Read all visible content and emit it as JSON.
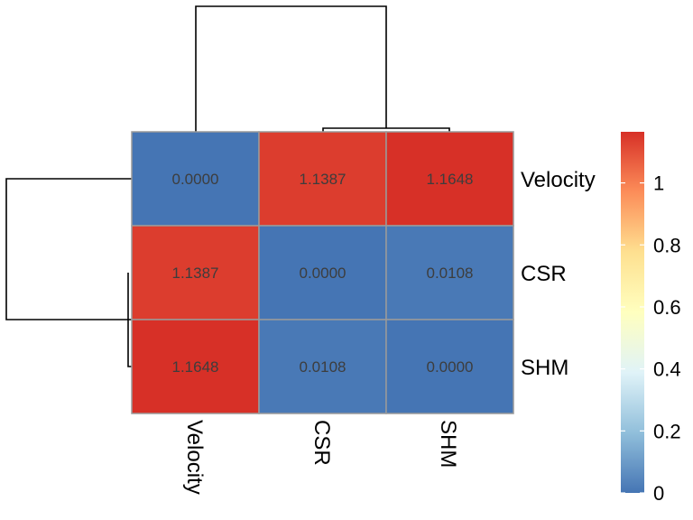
{
  "chart_data": {
    "type": "heatmap",
    "title": "",
    "rows": [
      "Velocity",
      "CSR",
      "SHM"
    ],
    "columns": [
      "Velocity",
      "CSR",
      "SHM"
    ],
    "values": [
      [
        0.0,
        1.1387,
        1.1648
      ],
      [
        1.1387,
        0.0,
        0.0108
      ],
      [
        1.1648,
        0.0108,
        0.0
      ]
    ],
    "cell_labels": [
      [
        "0.0000",
        "1.1387",
        "1.1648"
      ],
      [
        "1.1387",
        "0.0000",
        "0.0108"
      ],
      [
        "1.1648",
        "0.0108",
        "0.0000"
      ]
    ],
    "color_scale": {
      "min": 0,
      "max": 1.1648,
      "colors": [
        "#4575B4",
        "#91BFDB",
        "#E0F3F8",
        "#FFFFBF",
        "#FEE090",
        "#FC8D59",
        "#D73027"
      ]
    },
    "legend": {
      "ticks": [
        0,
        0.2,
        0.4,
        0.6,
        0.8,
        1
      ],
      "tick_labels": [
        "0",
        "0.2",
        "0.4",
        "0.6",
        "0.8",
        "1"
      ],
      "placement": "right"
    },
    "dendrograms": {
      "columns": "top",
      "rows": "left"
    },
    "grid": true
  }
}
